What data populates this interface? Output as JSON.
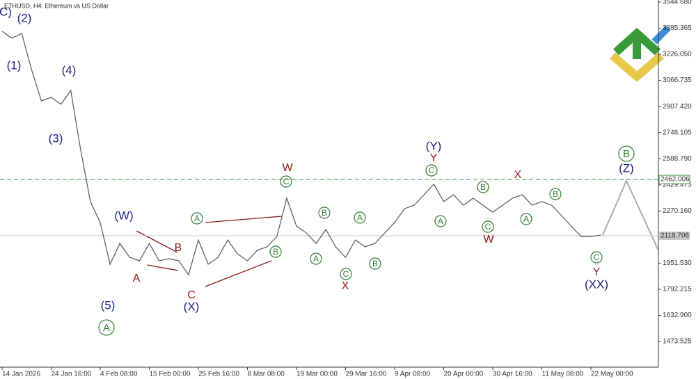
{
  "chart_data": {
    "type": "line",
    "title": "ETHUSD, H4:  Ethereum vs US Dollar",
    "color": "#555555",
    "categories": [
      "14 Jan 2026",
      null,
      null,
      null,
      null,
      "24 Jan 16:00",
      null,
      null,
      null,
      null,
      "4 Feb 08:00",
      null,
      null,
      null,
      null,
      "15 Feb 00:00",
      null,
      null,
      null,
      null,
      "25 Feb 16:00",
      null,
      null,
      null,
      null,
      "8 Mar 08:00",
      null,
      null,
      null,
      null,
      "19 Mar 00:00",
      null,
      null,
      null,
      null,
      "29 Mar 16:00",
      null,
      null,
      null,
      null,
      "9 Apr 08:00",
      null,
      null,
      null,
      null,
      "20 Apr 00:00",
      null,
      null,
      null,
      null,
      "30 Apr 16:00",
      null,
      null,
      null,
      null,
      "11 May 08:00",
      null,
      null,
      null,
      null,
      "22 May 00:00",
      null
    ],
    "values": [
      3366,
      3324,
      3353,
      3133,
      2942,
      2963,
      2921,
      3005,
      2645,
      2327,
      2199,
      1945,
      2072,
      1987,
      1966,
      2072,
      1966,
      1979,
      1966,
      1881,
      2093,
      1945,
      1987,
      2093,
      2008,
      1966,
      2030,
      2051,
      2114,
      2348,
      2178,
      2136,
      2072,
      2157,
      2051,
      1987,
      2093,
      2051,
      2072,
      2136,
      2199,
      2284,
      2305,
      2369,
      2433,
      2327,
      2369,
      2305,
      2348,
      2305,
      2263,
      2305,
      2348,
      2369,
      2305,
      2327,
      2305,
      2242,
      2178,
      2114,
      2114,
      2123
    ],
    "ylim": [
      1317,
      3557
    ],
    "yticks": [
      {
        "value": 3544.68,
        "label": "3544.680"
      },
      3385.365,
      {
        "value": 3226.05,
        "label": "3226.050"
      },
      3066.735,
      {
        "value": 2907.42,
        "label": "2907.420"
      },
      2748.105,
      {
        "value": 2588.79,
        "label": "2588.790"
      },
      2429.475,
      {
        "value": 2270.16,
        "label": "2270.160"
      },
      {
        "value": 1951.53,
        "label": "1951.530"
      },
      1792.215,
      {
        "value": 1632.9,
        "label": "1632.900"
      },
      1473.525
    ],
    "level": 2462.006,
    "current_price": 2118.706,
    "wave_labels_major": [
      "C)",
      "(2)",
      "(1)",
      "(4)",
      "(3)",
      "(W)",
      "(5)",
      "(X)",
      "(Y)",
      "(Z)",
      "(XX)"
    ],
    "wave_labels_minor": [
      "B",
      "A",
      "C",
      "W",
      "X",
      "Y",
      "X",
      "W",
      "Y"
    ],
    "wave_labels_circled": [
      "A",
      "A",
      "B",
      "C",
      "B",
      "A",
      "A",
      "C",
      "B",
      "C",
      "A",
      "B",
      "C",
      "A",
      "B",
      "C",
      "B"
    ]
  }
}
